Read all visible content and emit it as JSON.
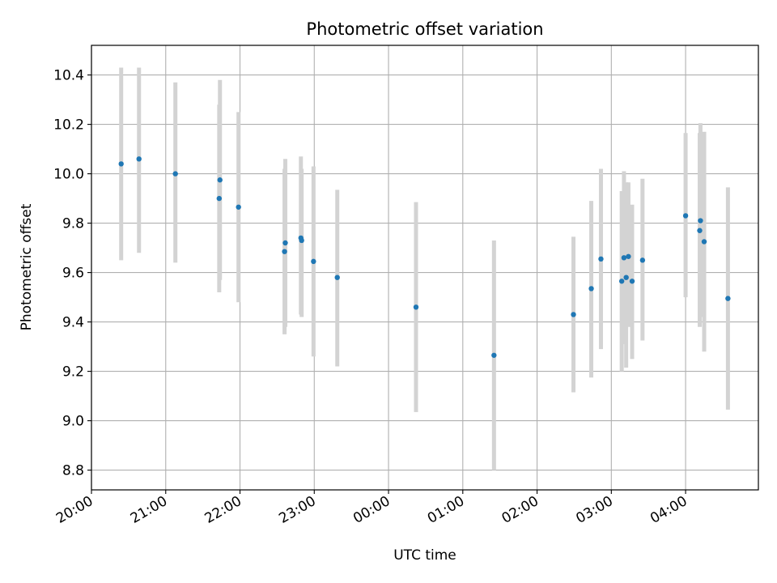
{
  "chart_data": {
    "type": "scatter",
    "title": "Photometric offset variation",
    "xlabel": "UTC time",
    "ylabel": "Photometric offset",
    "x_unit": "hours",
    "xlim": [
      0.0,
      8.98
    ],
    "ylim": [
      8.72,
      10.52
    ],
    "x_ticks": [
      {
        "value": 0,
        "label": "20:00"
      },
      {
        "value": 1,
        "label": "21:00"
      },
      {
        "value": 2,
        "label": "22:00"
      },
      {
        "value": 3,
        "label": "23:00"
      },
      {
        "value": 4,
        "label": "00:00"
      },
      {
        "value": 5,
        "label": "01:00"
      },
      {
        "value": 6,
        "label": "02:00"
      },
      {
        "value": 7,
        "label": "03:00"
      },
      {
        "value": 8,
        "label": "04:00"
      }
    ],
    "y_ticks": [
      {
        "value": 8.8,
        "label": "8.8"
      },
      {
        "value": 9.0,
        "label": "9.0"
      },
      {
        "value": 9.2,
        "label": "9.2"
      },
      {
        "value": 9.4,
        "label": "9.4"
      },
      {
        "value": 9.6,
        "label": "9.6"
      },
      {
        "value": 9.8,
        "label": "9.8"
      },
      {
        "value": 10.0,
        "label": "10.0"
      },
      {
        "value": 10.2,
        "label": "10.2"
      },
      {
        "value": 10.4,
        "label": "10.4"
      }
    ],
    "grid": true,
    "marker_color": "#1f77b4",
    "errorbar_color": "#d3d3d3",
    "points": [
      {
        "x": 0.4,
        "y": 10.04,
        "low": 9.65,
        "high": 10.43
      },
      {
        "x": 0.64,
        "y": 10.06,
        "low": 9.68,
        "high": 10.43
      },
      {
        "x": 1.13,
        "y": 10.0,
        "low": 9.64,
        "high": 10.37
      },
      {
        "x": 1.72,
        "y": 9.9,
        "low": 9.52,
        "high": 10.28
      },
      {
        "x": 1.73,
        "y": 9.975,
        "low": 9.57,
        "high": 10.38
      },
      {
        "x": 1.98,
        "y": 9.865,
        "low": 9.48,
        "high": 10.25
      },
      {
        "x": 2.6,
        "y": 9.685,
        "low": 9.35,
        "high": 10.02
      },
      {
        "x": 2.61,
        "y": 9.72,
        "low": 9.38,
        "high": 10.06
      },
      {
        "x": 2.82,
        "y": 9.74,
        "low": 9.43,
        "high": 10.07
      },
      {
        "x": 2.83,
        "y": 9.73,
        "low": 9.42,
        "high": 10.02
      },
      {
        "x": 2.99,
        "y": 9.645,
        "low": 9.26,
        "high": 10.03
      },
      {
        "x": 3.31,
        "y": 9.58,
        "low": 9.22,
        "high": 9.935
      },
      {
        "x": 4.37,
        "y": 9.46,
        "low": 9.035,
        "high": 9.885
      },
      {
        "x": 5.42,
        "y": 9.265,
        "low": 8.8,
        "high": 9.73
      },
      {
        "x": 6.49,
        "y": 9.43,
        "low": 9.115,
        "high": 9.745
      },
      {
        "x": 6.73,
        "y": 9.535,
        "low": 9.175,
        "high": 9.89
      },
      {
        "x": 6.86,
        "y": 9.655,
        "low": 9.29,
        "high": 10.02
      },
      {
        "x": 7.14,
        "y": 9.565,
        "low": 9.2,
        "high": 9.93
      },
      {
        "x": 7.17,
        "y": 9.66,
        "low": 9.31,
        "high": 10.01
      },
      {
        "x": 7.2,
        "y": 9.58,
        "low": 9.215,
        "high": 9.965
      },
      {
        "x": 7.23,
        "y": 9.665,
        "low": 9.38,
        "high": 9.965
      },
      {
        "x": 7.28,
        "y": 9.565,
        "low": 9.25,
        "high": 9.875
      },
      {
        "x": 7.42,
        "y": 9.65,
        "low": 9.325,
        "high": 9.98
      },
      {
        "x": 8.0,
        "y": 9.83,
        "low": 9.5,
        "high": 10.165
      },
      {
        "x": 8.19,
        "y": 9.77,
        "low": 9.38,
        "high": 10.165
      },
      {
        "x": 8.2,
        "y": 9.81,
        "low": 9.42,
        "high": 10.205
      },
      {
        "x": 8.25,
        "y": 9.725,
        "low": 9.28,
        "high": 10.17
      },
      {
        "x": 8.57,
        "y": 9.495,
        "low": 9.045,
        "high": 9.945
      }
    ]
  }
}
